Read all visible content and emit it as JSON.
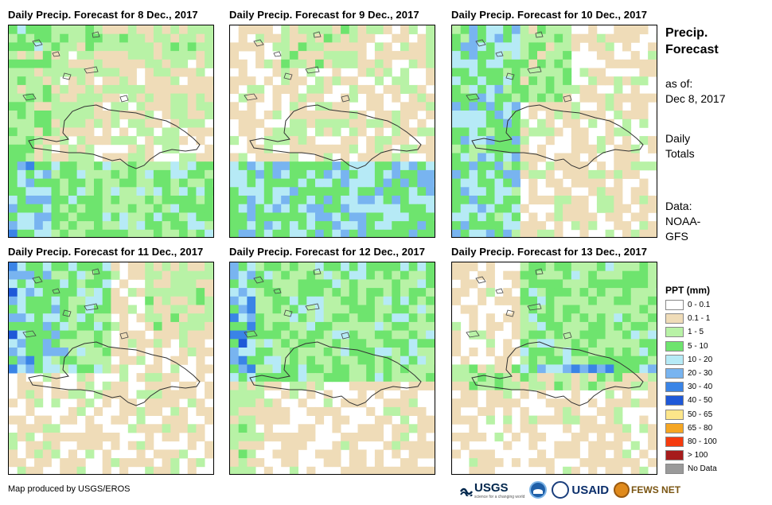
{
  "panels": [
    {
      "title": "Daily Precip. Forecast for 8 Dec., 2017",
      "seed": 8,
      "profile": "wet_south"
    },
    {
      "title": "Daily Precip. Forecast for 9 Dec., 2017",
      "seed": 9,
      "profile": "wet_south_heavy"
    },
    {
      "title": "Daily Precip. Forecast for 10 Dec., 2017",
      "seed": 10,
      "profile": "wet_west"
    },
    {
      "title": "Daily Precip. Forecast for 11 Dec., 2017",
      "seed": 11,
      "profile": "wet_northwest"
    },
    {
      "title": "Daily Precip. Forecast for 12 Dec., 2017",
      "seed": 12,
      "profile": "wet_north"
    },
    {
      "title": "Daily Precip. Forecast for 13 Dec., 2017",
      "seed": 13,
      "profile": "wet_northeast"
    }
  ],
  "side": {
    "title_line1": "Precip.",
    "title_line2": "Forecast",
    "asof_line1": "as of:",
    "asof_line2": "Dec 8, 2017",
    "daily_line1": "Daily",
    "daily_line2": "Totals",
    "data_line1": "Data:",
    "data_line2": "NOAA-",
    "data_line3": "GFS"
  },
  "legend": {
    "title": "PPT (mm)",
    "items": [
      {
        "label": "0 - 0.1",
        "color": "#ffffff"
      },
      {
        "label": "0.1 - 1",
        "color": "#efdcb8"
      },
      {
        "label": "1 - 5",
        "color": "#b8f2a6"
      },
      {
        "label": "5 - 10",
        "color": "#6ee46e"
      },
      {
        "label": "10 - 20",
        "color": "#b6eaf6"
      },
      {
        "label": "20 - 30",
        "color": "#78b4f0"
      },
      {
        "label": "30 - 40",
        "color": "#3a84e6"
      },
      {
        "label": "40 - 50",
        "color": "#1e58d8"
      },
      {
        "label": "50 - 65",
        "color": "#fde68a"
      },
      {
        "label": "65 - 80",
        "color": "#f5a623"
      },
      {
        "label": "80 - 100",
        "color": "#f53b0e"
      },
      {
        "label": "> 100",
        "color": "#a61c1c"
      },
      {
        "label": "No Data",
        "color": "#9a9a9a"
      }
    ]
  },
  "credit": "Map produced by USGS/EROS",
  "logos": {
    "usgs": "USGS",
    "usgs_tagline": "science for a changing world",
    "usaid": "USAID",
    "fews": "FEWS NET"
  }
}
